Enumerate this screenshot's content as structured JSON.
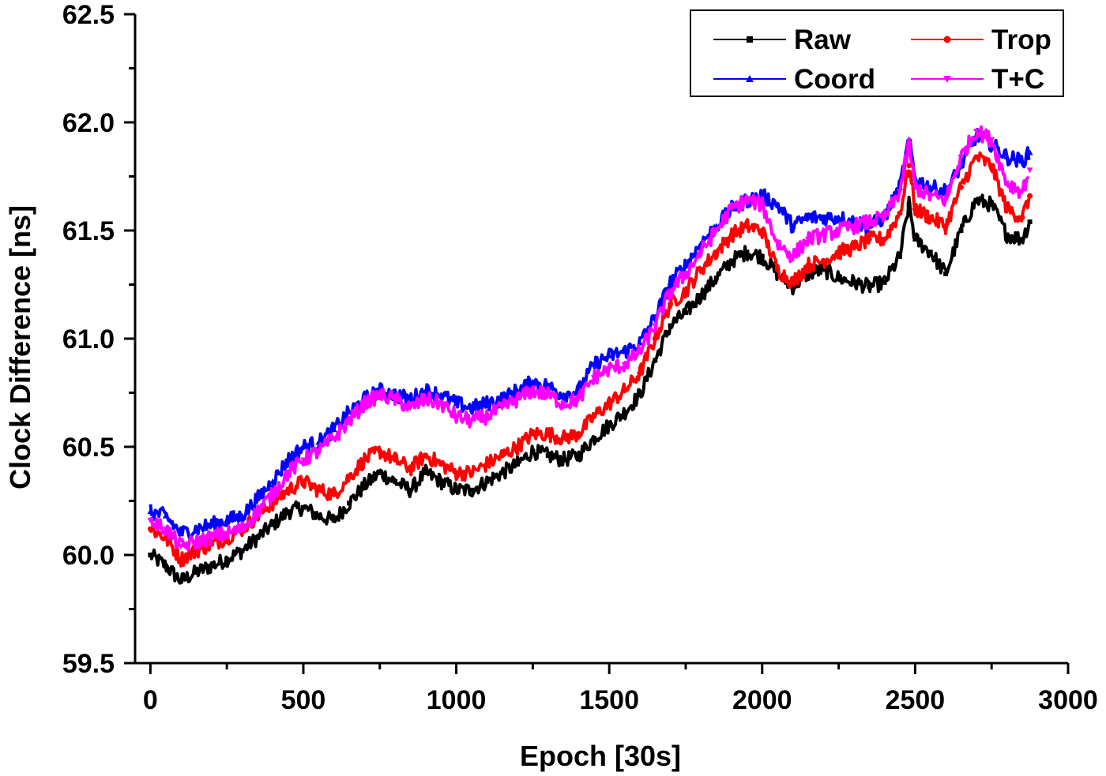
{
  "chart_data": {
    "type": "line",
    "title": "",
    "xlabel": "Epoch [30s]",
    "ylabel": "Clock Difference [ns]",
    "xlim": [
      -50,
      3000
    ],
    "ylim": [
      59.5,
      62.5
    ],
    "xticks": [
      0,
      500,
      1000,
      1500,
      2000,
      2500,
      3000
    ],
    "xtick_labels": [
      "0",
      "500",
      "1000",
      "1500",
      "2000",
      "2500",
      "3000"
    ],
    "yticks": [
      59.5,
      60.0,
      60.5,
      61.0,
      61.5,
      62.0,
      62.5
    ],
    "ytick_labels": [
      "59.5",
      "60.0",
      "60.5",
      "61.0",
      "61.5",
      "62.0",
      "62.5"
    ],
    "grid": false,
    "legend_position": "top-right",
    "x": [
      0,
      50,
      100,
      150,
      200,
      250,
      300,
      350,
      400,
      450,
      500,
      550,
      600,
      650,
      700,
      750,
      800,
      850,
      900,
      950,
      1000,
      1050,
      1100,
      1150,
      1200,
      1250,
      1300,
      1350,
      1400,
      1450,
      1500,
      1550,
      1600,
      1650,
      1700,
      1750,
      1800,
      1850,
      1900,
      1950,
      2000,
      2050,
      2100,
      2150,
      2200,
      2250,
      2300,
      2350,
      2400,
      2450,
      2480,
      2500,
      2550,
      2600,
      2650,
      2700,
      2750,
      2800,
      2850,
      2875
    ],
    "series": [
      {
        "name": "Raw",
        "color": "#000000",
        "marker": "square",
        "values": [
          60.0,
          59.95,
          59.88,
          59.92,
          59.95,
          59.98,
          60.02,
          60.08,
          60.14,
          60.2,
          60.22,
          60.18,
          60.16,
          60.24,
          60.32,
          60.38,
          60.34,
          60.3,
          60.38,
          60.34,
          60.3,
          60.3,
          60.34,
          60.38,
          60.42,
          60.48,
          60.46,
          60.44,
          60.46,
          60.54,
          60.6,
          60.66,
          60.74,
          60.9,
          61.06,
          61.12,
          61.2,
          61.28,
          61.36,
          61.4,
          61.38,
          61.3,
          61.24,
          61.3,
          61.32,
          61.28,
          61.26,
          61.24,
          61.26,
          61.38,
          61.62,
          61.46,
          61.4,
          61.3,
          61.5,
          61.64,
          61.62,
          61.48,
          61.46,
          61.54
        ]
      },
      {
        "name": "Trop",
        "color": "#ff0000",
        "marker": "circle",
        "values": [
          60.12,
          60.08,
          59.98,
          60.02,
          60.05,
          60.08,
          60.12,
          60.18,
          60.24,
          60.3,
          60.34,
          60.3,
          60.28,
          60.36,
          60.44,
          60.48,
          60.44,
          60.4,
          60.46,
          60.42,
          60.38,
          60.38,
          60.42,
          60.46,
          60.5,
          60.56,
          60.56,
          60.54,
          60.56,
          60.64,
          60.7,
          60.76,
          60.84,
          61.0,
          61.16,
          61.22,
          61.32,
          61.4,
          61.48,
          61.52,
          61.5,
          61.32,
          61.26,
          61.34,
          61.36,
          61.4,
          61.42,
          61.46,
          61.46,
          61.58,
          61.8,
          61.6,
          61.56,
          61.52,
          61.7,
          61.84,
          61.8,
          61.6,
          61.56,
          61.66
        ]
      },
      {
        "name": "Coord",
        "color": "#0000ff",
        "marker": "triangle-up",
        "values": [
          60.2,
          60.18,
          60.1,
          60.12,
          60.14,
          60.16,
          60.18,
          60.26,
          60.34,
          60.44,
          60.5,
          60.52,
          60.58,
          60.66,
          60.72,
          60.76,
          60.74,
          60.72,
          60.76,
          60.74,
          60.7,
          60.68,
          60.7,
          60.72,
          60.76,
          60.8,
          60.78,
          60.74,
          60.76,
          60.88,
          60.92,
          60.94,
          60.98,
          61.1,
          61.26,
          61.34,
          61.44,
          61.52,
          61.6,
          61.64,
          61.66,
          61.62,
          61.52,
          61.56,
          61.56,
          61.56,
          61.54,
          61.52,
          61.56,
          61.7,
          61.92,
          61.74,
          61.7,
          61.68,
          61.8,
          61.94,
          61.9,
          61.84,
          61.82,
          61.86
        ]
      },
      {
        "name": "T+C",
        "color": "#ff00ff",
        "marker": "triangle-down",
        "values": [
          60.16,
          60.12,
          60.04,
          60.06,
          60.08,
          60.1,
          60.12,
          60.2,
          60.28,
          60.38,
          60.44,
          60.48,
          60.54,
          60.62,
          60.7,
          60.74,
          60.72,
          60.68,
          60.72,
          60.7,
          60.64,
          60.62,
          60.64,
          60.68,
          60.72,
          60.76,
          60.74,
          60.7,
          60.72,
          60.82,
          60.86,
          60.88,
          60.94,
          61.06,
          61.22,
          61.3,
          61.4,
          61.5,
          61.6,
          61.64,
          61.62,
          61.44,
          61.38,
          61.46,
          61.48,
          61.5,
          61.52,
          61.54,
          61.56,
          61.68,
          61.9,
          61.7,
          61.66,
          61.64,
          61.84,
          61.96,
          61.92,
          61.72,
          61.68,
          61.78
        ]
      }
    ]
  }
}
